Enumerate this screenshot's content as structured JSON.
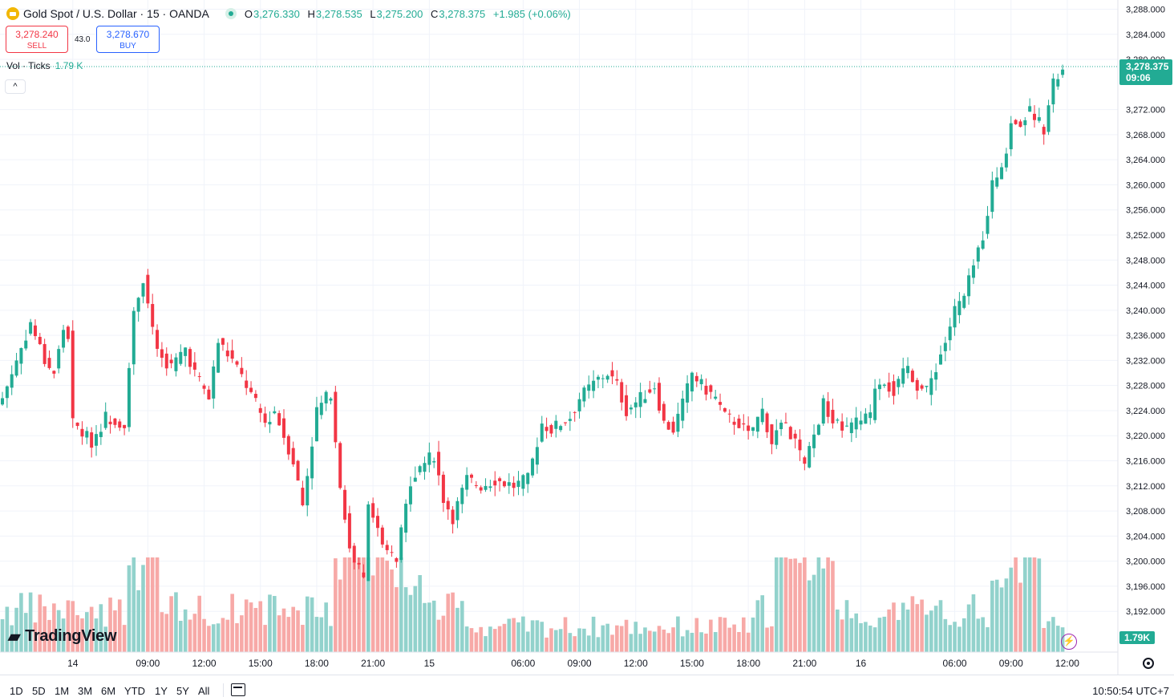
{
  "header": {
    "symbol_title": "Gold Spot / U.S. Dollar · 15 · OANDA",
    "ohlc": {
      "o_label": "O",
      "o": "3,276.330",
      "h_label": "H",
      "h": "3,278.535",
      "l_label": "L",
      "l": "3,275.200",
      "c_label": "C",
      "c": "3,278.375",
      "change": "+1.985 (+0.06%)"
    },
    "sell": {
      "price": "3,278.240",
      "label": "SELL"
    },
    "buy": {
      "price": "3,278.670",
      "label": "BUY"
    },
    "spread": "43.0",
    "volume_legend": {
      "label": "Vol · Ticks",
      "value": "1.79 K"
    }
  },
  "price_axis": {
    "current_price": "3,278.375",
    "countdown": "09:06",
    "volume_tag": "1.79K"
  },
  "bottom_bar": {
    "ranges": [
      "1D",
      "5D",
      "1M",
      "3M",
      "6M",
      "YTD",
      "1Y",
      "5Y",
      "All"
    ],
    "clock": "10:50:54 UTC+7"
  },
  "branding": {
    "logo_text": "TradingView"
  },
  "colors": {
    "up": "#22ab94",
    "down": "#f23645",
    "up_vol": "#92d2cc",
    "down_vol": "#f7a9a7",
    "grid": "#f0f3fa"
  },
  "icons": [
    "gold-symbol-icon",
    "market-status-icon",
    "collapse-chevron-icon",
    "tradingview-logo-icon",
    "calendar-icon",
    "lightning-icon",
    "gear-icon"
  ],
  "chart_data": {
    "type": "candlestick",
    "title": "Gold Spot / U.S. Dollar · 15 · OANDA",
    "ylim": [
      3186,
      3289
    ],
    "y_ticks": [
      3288,
      3284,
      3280,
      3272,
      3268,
      3264,
      3260,
      3256,
      3252,
      3248,
      3244,
      3240,
      3236,
      3232,
      3228,
      3224,
      3220,
      3216,
      3212,
      3208,
      3204,
      3200,
      3196,
      3192
    ],
    "x_ticks": [
      "14",
      "09:00",
      "12:00",
      "15:00",
      "18:00",
      "21:00",
      "15",
      "06:00",
      "09:00",
      "12:00",
      "15:00",
      "18:00",
      "21:00",
      "16",
      "06:00",
      "09:00",
      "12:00"
    ],
    "anchors": [
      [
        0,
        3226
      ],
      [
        4,
        3234
      ],
      [
        6,
        3238
      ],
      [
        9,
        3232
      ],
      [
        11,
        3230
      ],
      [
        13,
        3237
      ],
      [
        14,
        3236
      ],
      [
        15,
        3222
      ],
      [
        19,
        3219
      ],
      [
        22,
        3223
      ],
      [
        26,
        3222
      ],
      [
        28,
        3240
      ],
      [
        30,
        3245
      ],
      [
        33,
        3233
      ],
      [
        36,
        3231
      ],
      [
        39,
        3234
      ],
      [
        41,
        3230
      ],
      [
        44,
        3226
      ],
      [
        46,
        3235
      ],
      [
        49,
        3232
      ],
      [
        52,
        3228
      ],
      [
        56,
        3222
      ],
      [
        58,
        3224
      ],
      [
        62,
        3216
      ],
      [
        64,
        3209
      ],
      [
        67,
        3224
      ],
      [
        70,
        3227
      ],
      [
        72,
        3212
      ],
      [
        74,
        3202
      ],
      [
        77,
        3197
      ],
      [
        78,
        3210
      ],
      [
        81,
        3202
      ],
      [
        84,
        3200
      ],
      [
        87,
        3213
      ],
      [
        89,
        3215
      ],
      [
        92,
        3217
      ],
      [
        94,
        3210
      ],
      [
        96,
        3207
      ],
      [
        99,
        3213
      ],
      [
        102,
        3212
      ],
      [
        105,
        3213
      ],
      [
        109,
        3212
      ],
      [
        112,
        3213
      ],
      [
        115,
        3222
      ],
      [
        117,
        3221
      ],
      [
        121,
        3223
      ],
      [
        123,
        3226
      ],
      [
        127,
        3229
      ],
      [
        129,
        3230
      ],
      [
        131,
        3228
      ],
      [
        133,
        3224
      ],
      [
        136,
        3226
      ],
      [
        139,
        3228
      ],
      [
        141,
        3222
      ],
      [
        143,
        3221
      ],
      [
        145,
        3225
      ],
      [
        147,
        3230
      ],
      [
        149,
        3228
      ],
      [
        152,
        3226
      ],
      [
        154,
        3223
      ],
      [
        157,
        3222
      ],
      [
        159,
        3220
      ],
      [
        162,
        3224
      ],
      [
        164,
        3219
      ],
      [
        166,
        3222
      ],
      [
        169,
        3219
      ],
      [
        171,
        3215
      ],
      [
        173,
        3220
      ],
      [
        175,
        3225
      ],
      [
        177,
        3222
      ],
      [
        180,
        3221
      ],
      [
        182,
        3222
      ],
      [
        185,
        3223
      ],
      [
        186,
        3228
      ],
      [
        188,
        3229
      ],
      [
        190,
        3227
      ],
      [
        193,
        3231
      ],
      [
        195,
        3228
      ],
      [
        197,
        3227
      ],
      [
        199,
        3231
      ],
      [
        201,
        3235
      ],
      [
        203,
        3240
      ],
      [
        205,
        3242
      ],
      [
        207,
        3247
      ],
      [
        209,
        3252
      ],
      [
        211,
        3260
      ],
      [
        213,
        3262
      ],
      [
        215,
        3270
      ],
      [
        217,
        3270
      ],
      [
        219,
        3272
      ],
      [
        222,
        3269
      ],
      [
        224,
        3276
      ],
      [
        226,
        3278.375
      ]
    ]
  }
}
